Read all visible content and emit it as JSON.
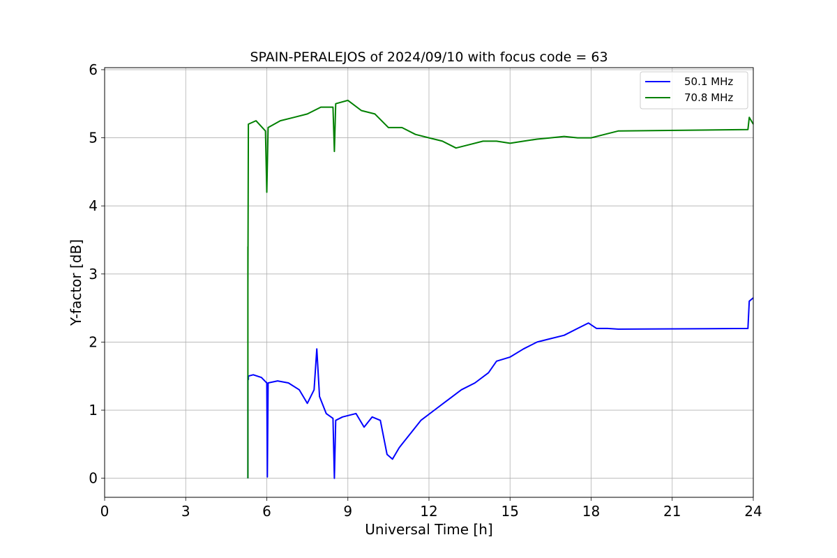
{
  "chart_data": {
    "type": "line",
    "title": "SPAIN-PERALEJOS of 2024/09/10 with focus code = 63",
    "xlabel": "Universal Time [h]",
    "ylabel": "Y-factor [dB]",
    "xlim": [
      0,
      24
    ],
    "ylim": [
      -0.28,
      6.03
    ],
    "xticks": [
      0,
      3,
      6,
      9,
      12,
      15,
      18,
      21,
      24
    ],
    "yticks": [
      0,
      1,
      2,
      3,
      4,
      5,
      6
    ],
    "grid": true,
    "legend_position": "top-right",
    "series": [
      {
        "name": "50.1 MHz",
        "color": "#0000ff",
        "x": [
          5.3,
          5.3,
          5.32,
          5.32,
          5.5,
          5.8,
          6.0,
          6.02,
          6.05,
          6.4,
          6.8,
          7.2,
          7.5,
          7.75,
          7.85,
          7.95,
          8.2,
          8.45,
          8.5,
          8.55,
          8.8,
          9.3,
          9.6,
          9.9,
          10.2,
          10.45,
          10.65,
          10.9,
          11.3,
          11.7,
          12.2,
          12.7,
          13.2,
          13.7,
          14.2,
          14.5,
          15.0,
          15.5,
          16.0,
          16.5,
          17.0,
          17.5,
          17.9,
          18.2,
          18.6,
          19.0,
          23.8,
          23.85,
          24.0
        ],
        "y": [
          0.0,
          1.5,
          1.45,
          1.5,
          1.52,
          1.48,
          1.4,
          0.02,
          1.4,
          1.43,
          1.4,
          1.3,
          1.1,
          1.3,
          1.9,
          1.2,
          0.95,
          0.88,
          0.0,
          0.85,
          0.9,
          0.95,
          0.75,
          0.9,
          0.85,
          0.35,
          0.28,
          0.45,
          0.65,
          0.85,
          1.0,
          1.15,
          1.3,
          1.4,
          1.55,
          1.72,
          1.78,
          1.9,
          2.0,
          2.05,
          2.1,
          2.2,
          2.28,
          2.2,
          2.2,
          2.19,
          2.2,
          2.6,
          2.65
        ]
      },
      {
        "name": "70.8 MHz",
        "color": "#008000",
        "x": [
          5.3,
          5.3,
          5.3,
          5.32,
          5.6,
          5.95,
          6.0,
          6.05,
          6.5,
          7.0,
          7.5,
          8.0,
          8.45,
          8.5,
          8.55,
          9.0,
          9.5,
          10.0,
          10.5,
          11.0,
          11.5,
          12.0,
          12.5,
          13.0,
          13.5,
          14.0,
          14.5,
          15.0,
          15.5,
          16.0,
          16.5,
          17.0,
          17.5,
          18.0,
          18.5,
          19.0,
          23.8,
          23.85,
          24.0
        ],
        "y": [
          0.0,
          3.4,
          2.8,
          5.2,
          5.25,
          5.1,
          4.2,
          5.15,
          5.25,
          5.3,
          5.35,
          5.45,
          5.45,
          4.8,
          5.5,
          5.55,
          5.4,
          5.35,
          5.15,
          5.15,
          5.05,
          5.0,
          4.95,
          4.85,
          4.9,
          4.95,
          4.95,
          4.92,
          4.95,
          4.98,
          5.0,
          5.02,
          5.0,
          5.0,
          5.05,
          5.1,
          5.12,
          5.3,
          5.2
        ]
      }
    ]
  }
}
